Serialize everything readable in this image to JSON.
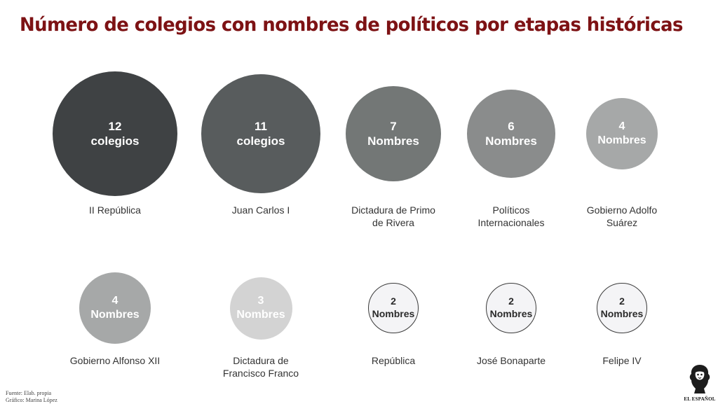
{
  "chart_data": {
    "type": "bubble",
    "title": "Número de colegios con nombres de políticos por etapas históricas",
    "categories": [
      "II República",
      "Juan Carlos I",
      "Dictadura de Primo de Rivera",
      "Políticos Internacionales",
      "Gobierno Adolfo Suárez",
      "Gobierno Alfonso XII",
      "Dictadura de Francisco Franco",
      "República",
      "José Bonaparte",
      "Felipe IV"
    ],
    "values": [
      12,
      11,
      7,
      6,
      4,
      4,
      3,
      2,
      2,
      2
    ],
    "units": [
      "colegios",
      "colegios",
      "Nombres",
      "Nombres",
      "Nombres",
      "Nombres",
      "Nombres",
      "Nombres",
      "Nombres",
      "Nombres"
    ],
    "colors": [
      "#3f4244",
      "#585c5d",
      "#737776",
      "#8a8c8c",
      "#a6a8a8",
      "#a6a8a8",
      "#d3d3d3",
      "#f4f4f6",
      "#f4f4f6",
      "#f4f4f6"
    ]
  },
  "footer": {
    "source": "Fuente: Elab. propia",
    "credit": "Gráfico: Marina López"
  },
  "logo": {
    "name": "EL ESPAÑOL",
    "icon": "lion-icon"
  }
}
